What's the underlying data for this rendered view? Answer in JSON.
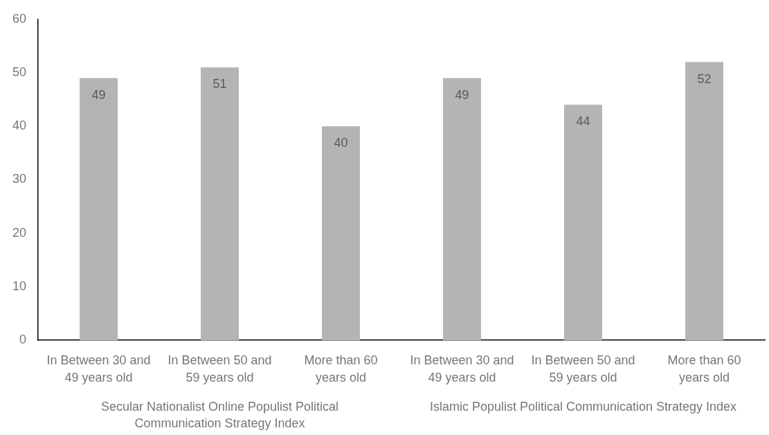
{
  "chart_data": {
    "type": "bar",
    "categories": [
      "In Between 30 and 49 years old",
      "In Between 50 and 59 years old",
      "More than 60 years old",
      "In Between 30 and 49 years old",
      "In Between 50 and 59 years old",
      "More than 60 years old"
    ],
    "values": [
      49,
      51,
      40,
      49,
      44,
      52
    ],
    "color": "#b4b4b4",
    "ylim": [
      0,
      60
    ],
    "yticks": [
      0,
      10,
      20,
      30,
      40,
      50,
      60
    ],
    "data_labels": true,
    "annotations": [
      "Secular Nationalist Online Populist Political Communication Strategy Index",
      "Islamic Populist Political Communication Strategy Index"
    ]
  }
}
